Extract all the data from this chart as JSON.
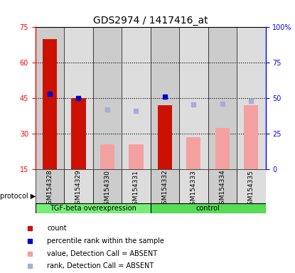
{
  "title": "GDS2974 / 1417416_at",
  "samples": [
    "GSM154328",
    "GSM154329",
    "GSM154330",
    "GSM154331",
    "GSM154332",
    "GSM154333",
    "GSM154334",
    "GSM154335"
  ],
  "count_values": [
    70,
    45,
    0,
    0,
    42,
    0,
    0,
    0
  ],
  "value_absent": [
    0,
    0,
    25.5,
    25.5,
    0,
    28.5,
    32.5,
    42
  ],
  "percentile_rank": [
    53,
    50,
    0,
    0,
    51,
    0,
    0,
    0
  ],
  "rank_absent": [
    0,
    0,
    42,
    41,
    0,
    45.5,
    46,
    48
  ],
  "ylim_left": [
    15,
    75
  ],
  "ylim_right": [
    0,
    100
  ],
  "yticks_left": [
    15,
    30,
    45,
    60,
    75
  ],
  "yticks_right": [
    0,
    25,
    50,
    75,
    100
  ],
  "ytick_labels_right": [
    "0",
    "25",
    "50",
    "75",
    "100%"
  ],
  "protocol_groups": [
    {
      "label": "TGF-beta overexpression",
      "start": 0,
      "end": 4,
      "color": "#77ee77"
    },
    {
      "label": "control",
      "start": 4,
      "end": 8,
      "color": "#55dd55"
    }
  ],
  "bar_width": 0.5,
  "color_count": "#cc1100",
  "color_value_absent": "#f4a0a0",
  "color_percentile": "#0000cc",
  "color_rank_absent": "#aaaadd",
  "color_bg_even": "#cccccc",
  "color_bg_odd": "#dddddd",
  "marker_size": 5,
  "grid_ticks": [
    30,
    45,
    60
  ],
  "title_fontsize": 10,
  "label_fontsize": 7,
  "tick_fontsize": 7
}
